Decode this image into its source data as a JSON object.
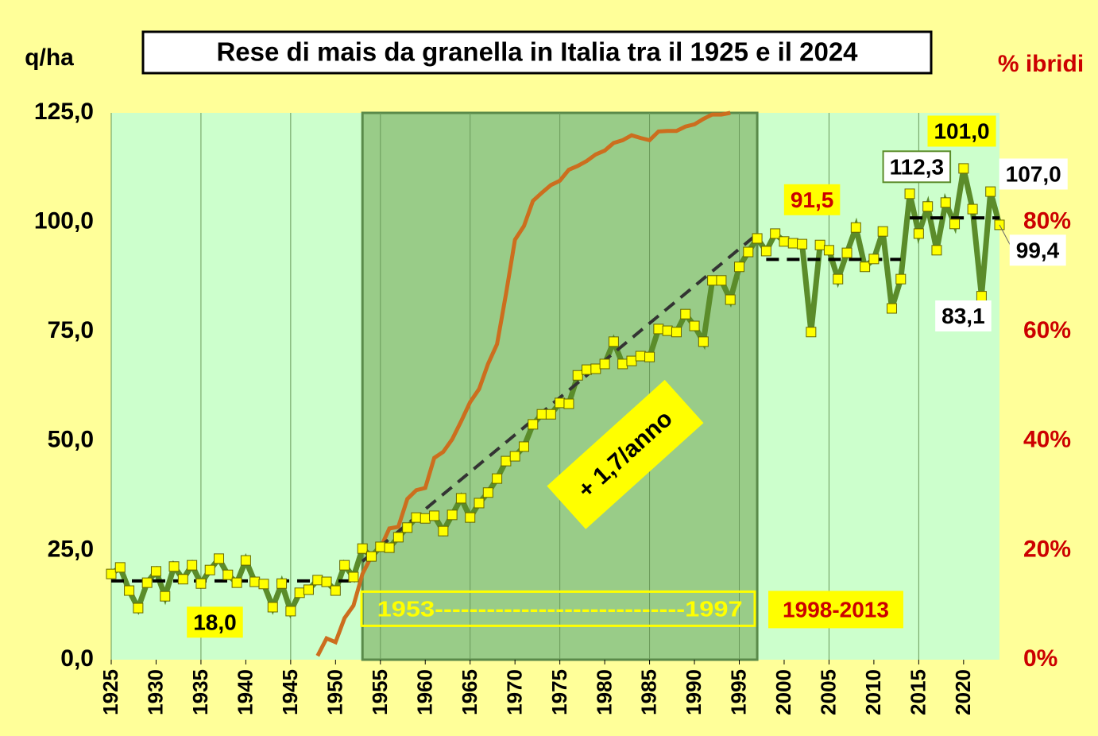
{
  "chart_data": {
    "type": "line",
    "title": "Rese di mais da granella in Italia tra il 1925 e il 2024",
    "ylabel": "q/ha",
    "y2label": "% ibridi",
    "x": [
      1925,
      1926,
      1927,
      1928,
      1929,
      1930,
      1931,
      1932,
      1933,
      1934,
      1935,
      1936,
      1937,
      1938,
      1939,
      1940,
      1941,
      1942,
      1943,
      1944,
      1945,
      1946,
      1947,
      1948,
      1949,
      1950,
      1951,
      1952,
      1953,
      1954,
      1955,
      1956,
      1957,
      1958,
      1959,
      1960,
      1961,
      1962,
      1963,
      1964,
      1965,
      1966,
      1967,
      1968,
      1969,
      1970,
      1971,
      1972,
      1973,
      1974,
      1975,
      1976,
      1977,
      1978,
      1979,
      1980,
      1981,
      1982,
      1983,
      1984,
      1985,
      1986,
      1987,
      1988,
      1989,
      1990,
      1991,
      1992,
      1993,
      1994,
      1995,
      1996,
      1997,
      1998,
      1999,
      2000,
      2001,
      2002,
      2003,
      2004,
      2005,
      2006,
      2007,
      2008,
      2009,
      2010,
      2011,
      2012,
      2013,
      2014,
      2015,
      2016,
      2017,
      2018,
      2019,
      2020,
      2021,
      2022,
      2023,
      2024
    ],
    "xlim": [
      1925,
      2024
    ],
    "xticks": [
      1925,
      1930,
      1935,
      1940,
      1945,
      1950,
      1955,
      1960,
      1965,
      1970,
      1975,
      1980,
      1985,
      1990,
      1995,
      2000,
      2005,
      2010,
      2015,
      2020
    ],
    "ylim": [
      0,
      125
    ],
    "yticks": [
      {
        "value": 0,
        "label": "0,0"
      },
      {
        "value": 25,
        "label": "25,0"
      },
      {
        "value": 50,
        "label": "50,0"
      },
      {
        "value": 75,
        "label": "75,0"
      },
      {
        "value": 100,
        "label": "100,0"
      },
      {
        "value": 125,
        "label": "125,0"
      }
    ],
    "y2lim": [
      0,
      100
    ],
    "y2ticks": [
      {
        "value": 0,
        "label": "0%"
      },
      {
        "value": 20,
        "label": "20%"
      },
      {
        "value": 40,
        "label": "40%"
      },
      {
        "value": 60,
        "label": "60%"
      },
      {
        "value": 80,
        "label": "80%"
      }
    ],
    "grid": true,
    "series": [
      {
        "color": "#5b8c2a",
        "marker_color": "#ffff00",
        "values": [
          19.6,
          21.1,
          15.8,
          11.8,
          17.6,
          20.2,
          14.5,
          21.3,
          18.4,
          21.6,
          17.4,
          20.5,
          23.1,
          19.4,
          17.6,
          22.7,
          17.8,
          17.3,
          12.0,
          17.4,
          11.1,
          15.3,
          16.0,
          18.2,
          17.8,
          15.8,
          21.6,
          18.9,
          25.4,
          23.6,
          25.8,
          25.6,
          28.0,
          30.2,
          32.5,
          32.3,
          32.9,
          29.4,
          33.1,
          36.9,
          32.5,
          35.8,
          38.2,
          41.4,
          45.4,
          46.5,
          48.7,
          53.8,
          56.1,
          56.1,
          58.7,
          58.5,
          65.0,
          66.3,
          66.5,
          67.6,
          72.7,
          67.6,
          68.3,
          69.4,
          69.2,
          75.6,
          75.2,
          74.9,
          79.0,
          76.3,
          72.7,
          86.7,
          86.7,
          82.3,
          89.8,
          93.2,
          96.3,
          93.4,
          97.4,
          95.6,
          95.2,
          95.0,
          74.9,
          94.8,
          93.6,
          87.0,
          93.0,
          98.8,
          89.8,
          91.6,
          97.9,
          80.3,
          87.0,
          106.5,
          97.4,
          103.6,
          93.6,
          104.5,
          99.6,
          112.3,
          103.0,
          83.1,
          107.0,
          99.4
        ],
        "value_labels": [
          null,
          null,
          null,
          null,
          null,
          null,
          null,
          null,
          null,
          null,
          null,
          null,
          null,
          null,
          null,
          null,
          null,
          null,
          null,
          null,
          null,
          null,
          null,
          null,
          null,
          null,
          null,
          null,
          null,
          null,
          null,
          null,
          null,
          null,
          null,
          null,
          null,
          null,
          null,
          null,
          null,
          null,
          null,
          null,
          null,
          null,
          null,
          null,
          null,
          null,
          null,
          null,
          null,
          null,
          null,
          null,
          null,
          null,
          null,
          null,
          null,
          null,
          null,
          null,
          null,
          null,
          null,
          null,
          null,
          null,
          null,
          null,
          null,
          null,
          null,
          null,
          null,
          null,
          null,
          null,
          null,
          null,
          null,
          null,
          null,
          null,
          null,
          null,
          null,
          null,
          null,
          null,
          null,
          null,
          null,
          "112,3",
          null,
          "83,1",
          "107,0",
          "99,4"
        ]
      },
      {
        "axis": "y2",
        "color": "#cc6e1e",
        "x": [
          1948,
          1949,
          1950,
          1951,
          1952,
          1953,
          1954,
          1955,
          1956,
          1957,
          1958,
          1959,
          1960,
          1961,
          1962,
          1963,
          1964,
          1965,
          1966,
          1967,
          1968,
          1969,
          1970,
          1971,
          1972,
          1973,
          1974,
          1975,
          1976,
          1977,
          1978,
          1979,
          1980,
          1981,
          1982,
          1983,
          1984,
          1985,
          1986,
          1987,
          1988,
          1989,
          1990,
          1991,
          1992,
          1993,
          1994
        ],
        "values": [
          0.7,
          3.9,
          3.2,
          7.6,
          9.9,
          15.7,
          18.9,
          20.4,
          24.0,
          24.3,
          29.4,
          31.0,
          31.4,
          36.9,
          38.0,
          40.3,
          43.6,
          47.1,
          49.5,
          54.1,
          57.7,
          66.9,
          76.8,
          79.3,
          83.9,
          85.4,
          86.8,
          87.6,
          89.6,
          90.3,
          91.2,
          92.4,
          93.1,
          94.5,
          95.0,
          95.9,
          95.4,
          95.0,
          96.6,
          96.7,
          96.7,
          97.5,
          97.9,
          98.9,
          99.7,
          99.7,
          100
        ]
      }
    ],
    "reference_lines": [
      {
        "x": [
          1925,
          1952
        ],
        "values": [
          18.0,
          18.0
        ],
        "label": "18,0"
      },
      {
        "x": [
          1953,
          1997
        ],
        "values": [
          22.5,
          97.3
        ]
      },
      {
        "x": [
          1998,
          2013
        ],
        "values": [
          91.5,
          91.5
        ],
        "label": "91,5"
      },
      {
        "x": [
          2014,
          2024
        ],
        "values": [
          101.0,
          101.0
        ],
        "label": "101,0"
      }
    ],
    "highlight": {
      "x": [
        1953,
        1997
      ],
      "label": "1953-----------------------------1997"
    },
    "annotations": [
      "+ 1,7/anno",
      "1998-2013"
    ]
  }
}
